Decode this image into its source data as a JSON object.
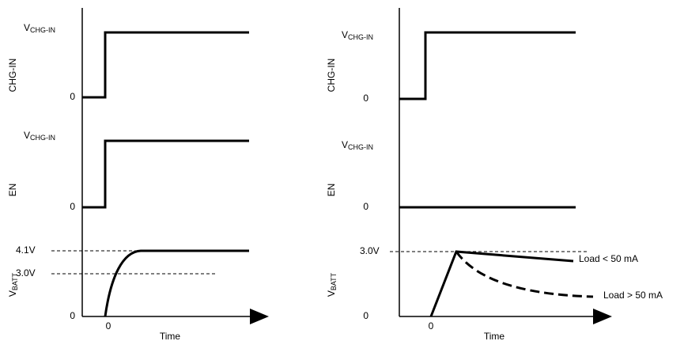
{
  "panels": [
    {
      "chg_in": {
        "name": "CHG-IN",
        "high": {
          "main": "V",
          "sub": "CHG-IN"
        },
        "low": "0"
      },
      "en": {
        "name": "EN",
        "high": {
          "main": "V",
          "sub": "CHG-IN"
        },
        "low": "0"
      },
      "vbatt": {
        "name": {
          "main": "V",
          "sub": "BATT"
        },
        "levels": [
          "4.1V",
          "3.0V"
        ],
        "low": "0"
      },
      "x_origin": "0",
      "x_label": "Time"
    },
    {
      "chg_in": {
        "name": "CHG-IN",
        "high": {
          "main": "V",
          "sub": "CHG-IN"
        },
        "low": "0"
      },
      "en": {
        "name": "EN",
        "high": {
          "main": "V",
          "sub": "CHG-IN"
        },
        "low": "0"
      },
      "vbatt": {
        "name": {
          "main": "V",
          "sub": "BATT"
        },
        "levels": [
          "3.0V"
        ],
        "low": "0",
        "annotations": [
          "Load < 50 mA",
          "Load > 50 mA"
        ]
      },
      "x_origin": "0",
      "x_label": "Time"
    }
  ]
}
